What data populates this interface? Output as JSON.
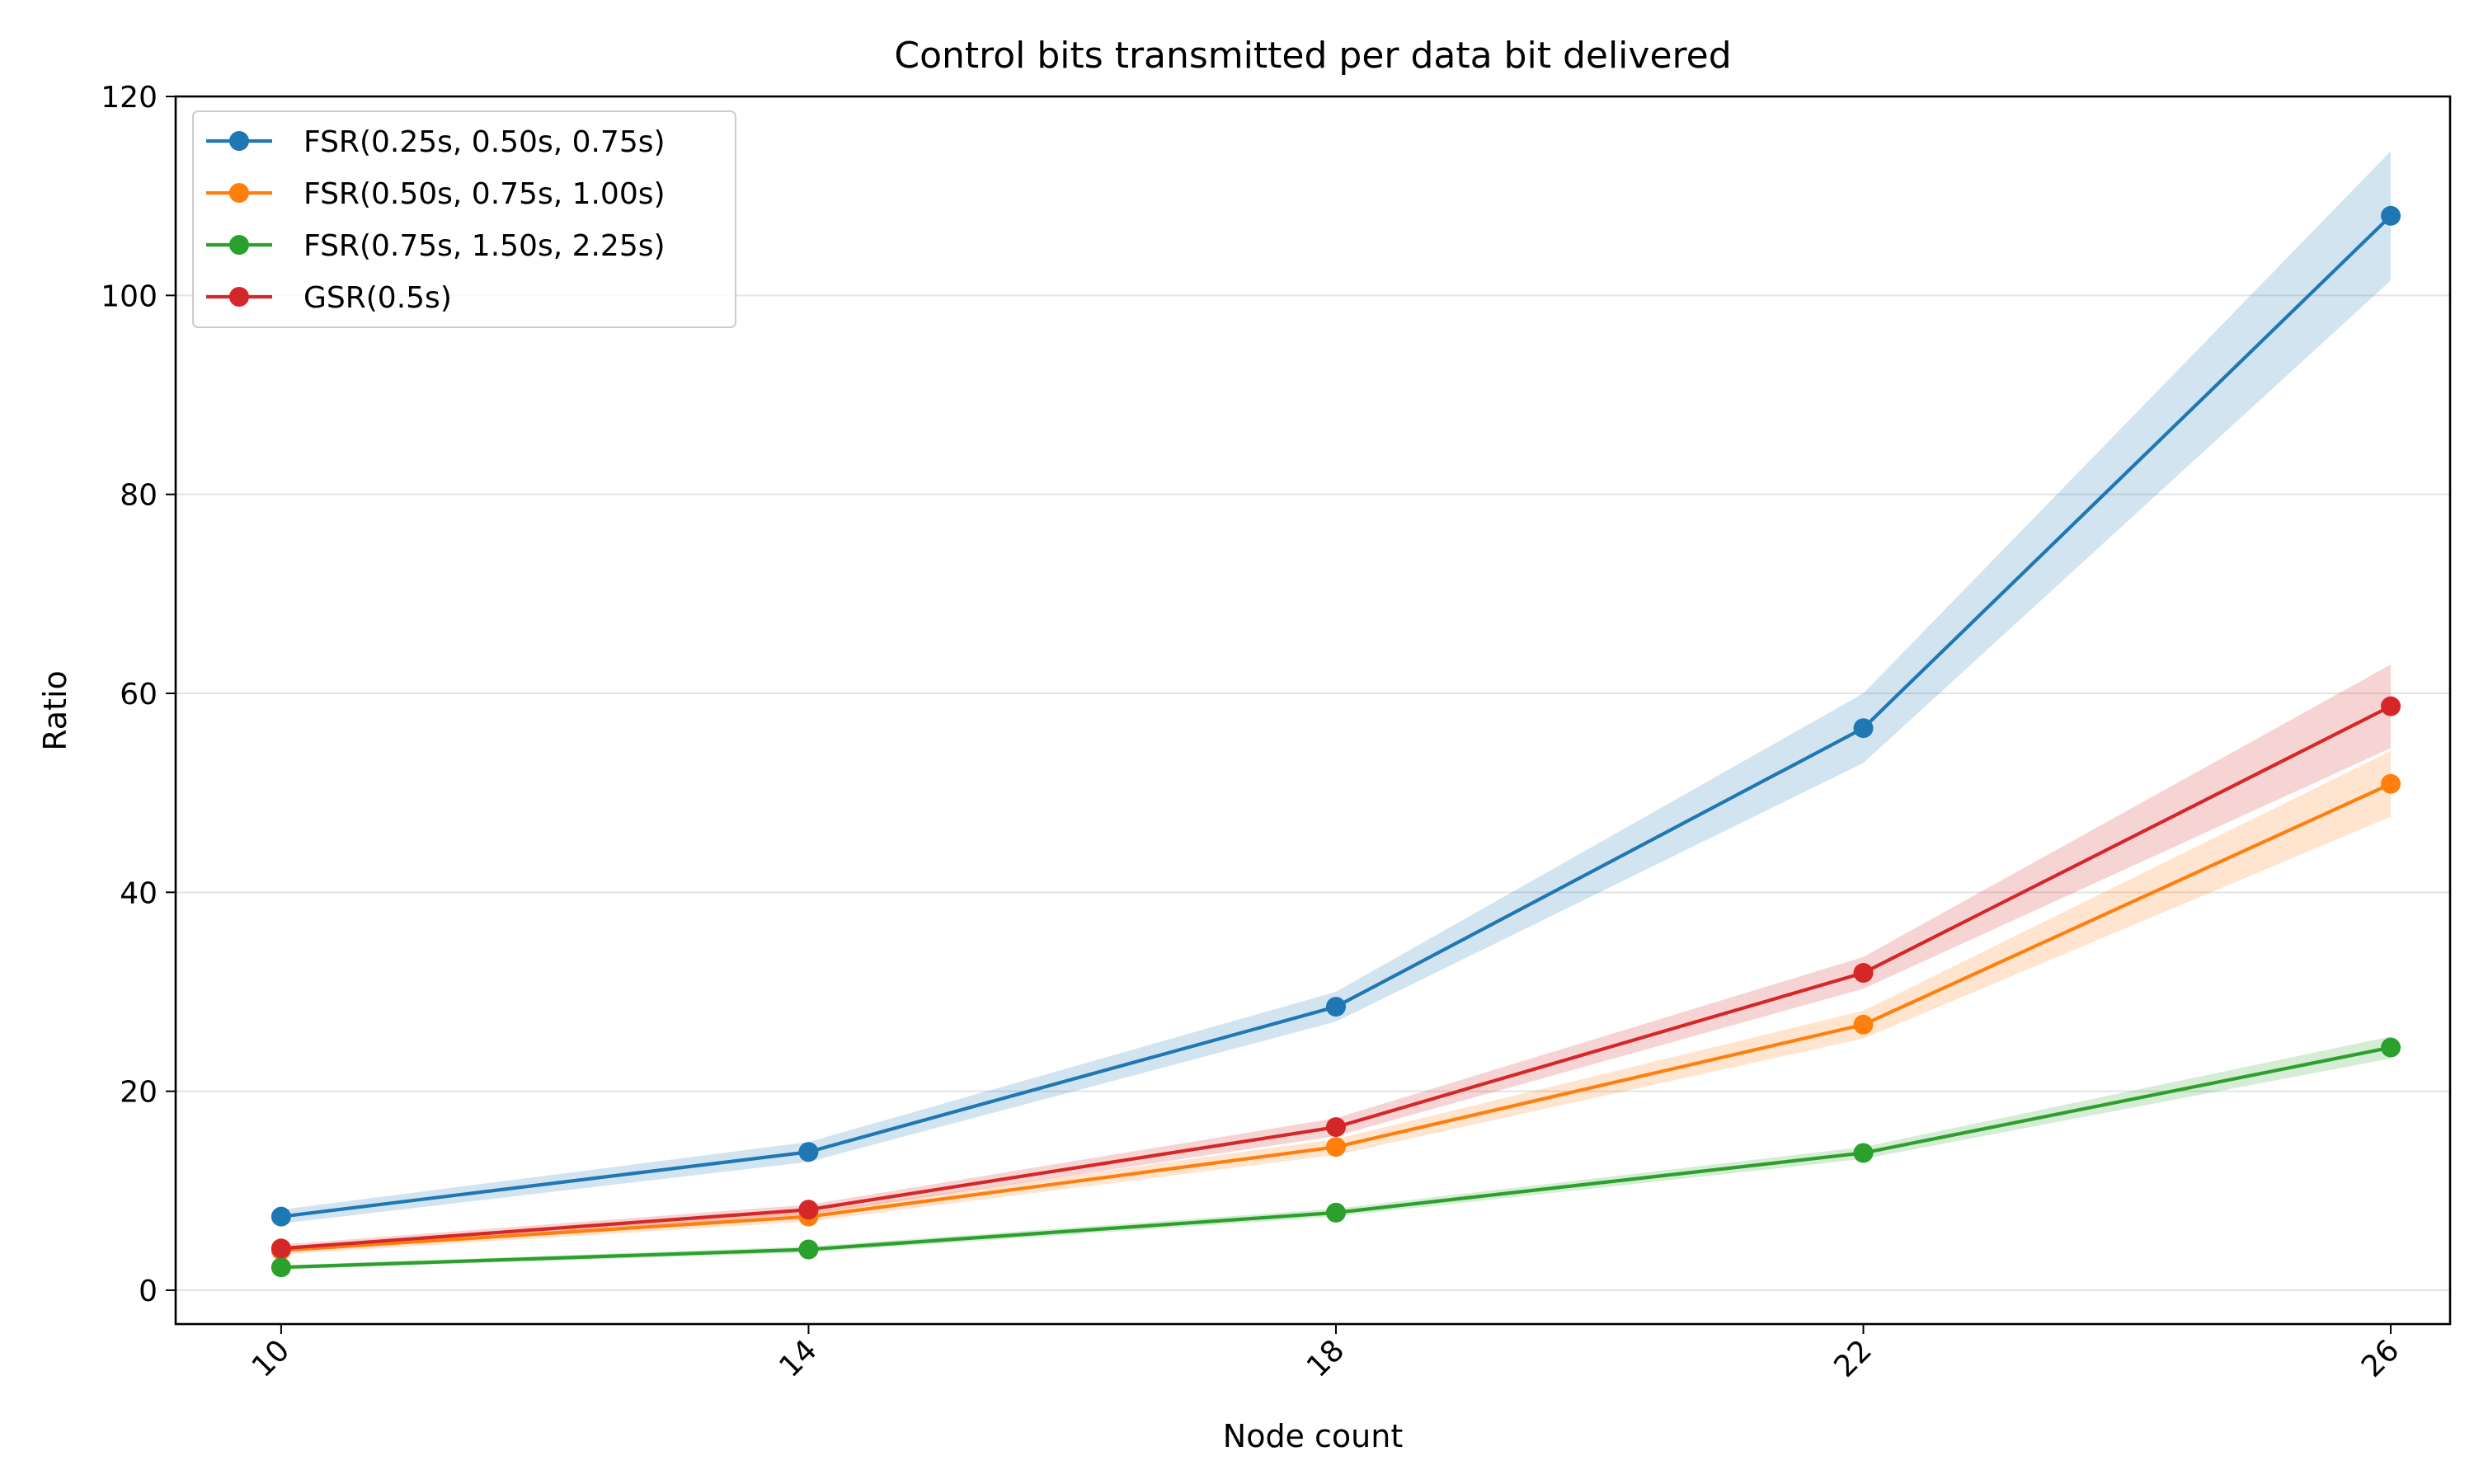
{
  "chart_data": {
    "type": "line",
    "title": "Control bits transmitted per data bit delivered",
    "xlabel": "Node count",
    "ylabel": "Ratio",
    "x": [
      10,
      14,
      18,
      22,
      26
    ],
    "x_ticks": [
      "10",
      "14",
      "18",
      "22",
      "26"
    ],
    "y_ticks": [
      "0",
      "20",
      "40",
      "60",
      "80",
      "100",
      "120"
    ],
    "xlim": [
      9.2,
      26.45
    ],
    "ylim": [
      -3.4,
      120
    ],
    "grid": "horizontal",
    "legend_position": "top-left",
    "series": [
      {
        "name": "FSR(0.25s, 0.50s, 0.75s)",
        "color": "#1f77b4",
        "values": [
          7.4,
          13.9,
          28.5,
          56.5,
          108.0
        ],
        "band_lower": [
          6.7,
          12.9,
          27.0,
          53.0,
          101.5
        ],
        "band_upper": [
          8.1,
          14.9,
          30.0,
          60.0,
          114.5
        ]
      },
      {
        "name": "FSR(0.50s, 0.75s, 1.00s)",
        "color": "#ff7f0e",
        "values": [
          4.0,
          7.4,
          14.4,
          26.7,
          50.9
        ],
        "band_lower": [
          3.6,
          6.9,
          13.6,
          25.3,
          47.6
        ],
        "band_upper": [
          4.4,
          7.9,
          15.2,
          28.1,
          54.2
        ]
      },
      {
        "name": "FSR(0.75s, 1.50s, 2.25s)",
        "color": "#2ca02c",
        "values": [
          2.3,
          4.1,
          7.8,
          13.8,
          24.4
        ],
        "band_lower": [
          2.1,
          3.8,
          7.4,
          13.2,
          23.3
        ],
        "band_upper": [
          2.5,
          4.4,
          8.2,
          14.4,
          25.5
        ]
      },
      {
        "name": "GSR(0.5s)",
        "color": "#d62728",
        "values": [
          4.2,
          8.1,
          16.4,
          31.9,
          58.7
        ],
        "band_lower": [
          3.8,
          7.6,
          15.5,
          30.3,
          54.5
        ],
        "band_upper": [
          4.6,
          8.6,
          17.3,
          33.5,
          62.9
        ]
      }
    ]
  }
}
